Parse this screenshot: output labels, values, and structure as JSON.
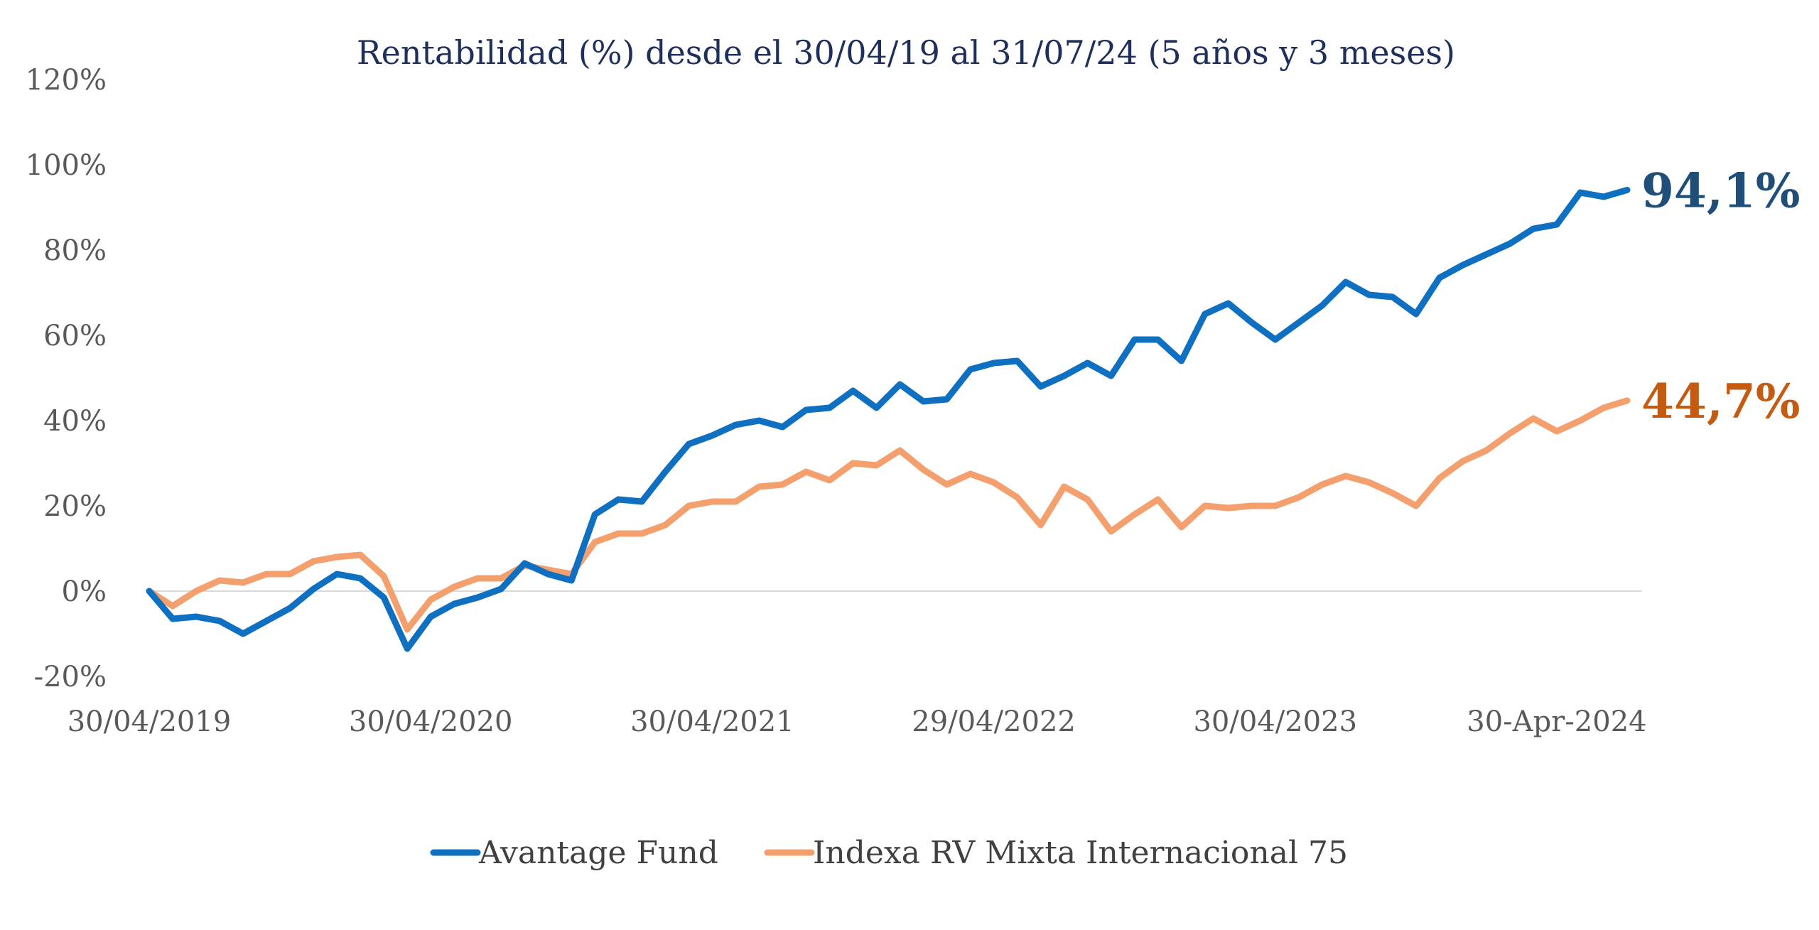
{
  "chart_data": {
    "type": "line",
    "title": "Rentabilidad (%) desde el 30/04/19 al 31/07/24 (5 años y 3 meses)",
    "ylim": [
      -20,
      120
    ],
    "y_ticks": [
      -20,
      0,
      20,
      40,
      60,
      80,
      100,
      120
    ],
    "y_tick_labels": [
      "-20%",
      "0%",
      "20%",
      "40%",
      "60%",
      "80%",
      "100%",
      "120%"
    ],
    "x_ticks": [
      {
        "index": 0,
        "label": "30/04/2019"
      },
      {
        "index": 12,
        "label": "30/04/2020"
      },
      {
        "index": 24,
        "label": "30/04/2021"
      },
      {
        "index": 36,
        "label": "29/04/2022"
      },
      {
        "index": 48,
        "label": "30/04/2023"
      },
      {
        "index": 60,
        "label": "30-Apr-2024"
      }
    ],
    "grid": false,
    "legend_position": "bottom",
    "colors": {
      "title": "#1F2F5C",
      "baseline": "#D9D9D9"
    },
    "series": [
      {
        "name": "Avantage Fund",
        "color": "#0F6FC0",
        "label_color": "#1F4E79",
        "end_label": "94,1%",
        "values": [
          0,
          -6.5,
          -6,
          -7,
          -10,
          -7,
          -4,
          0.5,
          4,
          3,
          -1.5,
          -13.5,
          -6,
          -3,
          -1.5,
          0.5,
          6.5,
          4,
          2.5,
          18,
          21.5,
          21,
          28,
          34.5,
          36.5,
          39,
          40,
          38.5,
          42.5,
          43,
          47,
          43,
          48.5,
          44.5,
          45,
          52,
          53.5,
          54,
          48,
          50.5,
          53.5,
          50.5,
          59,
          59,
          54,
          65,
          67.5,
          63,
          59,
          63,
          67,
          72.5,
          69.5,
          69,
          65,
          73.5,
          76.5,
          79,
          81.5,
          85,
          86,
          93.5,
          92.5,
          94.1
        ]
      },
      {
        "name": "Indexa RV Mixta Internacional 75",
        "color": "#F4A06E",
        "label_color": "#C55A11",
        "end_label": "44,7%",
        "values": [
          0,
          -3.5,
          0,
          2.5,
          2,
          4,
          4,
          7,
          8,
          8.5,
          3.5,
          -9,
          -2,
          1,
          3,
          3,
          6,
          5,
          4,
          11.5,
          13.5,
          13.5,
          15.5,
          20,
          21,
          21,
          24.5,
          25,
          28,
          26,
          30,
          29.5,
          33,
          28.5,
          25,
          27.5,
          25.5,
          22,
          15.5,
          24.5,
          21.5,
          14,
          18,
          21.5,
          15,
          20,
          19.5,
          20,
          20,
          22,
          25,
          27,
          25.5,
          23,
          20,
          26.5,
          30.5,
          33,
          37,
          40.5,
          37.5,
          40,
          43,
          44.7
        ]
      }
    ]
  }
}
